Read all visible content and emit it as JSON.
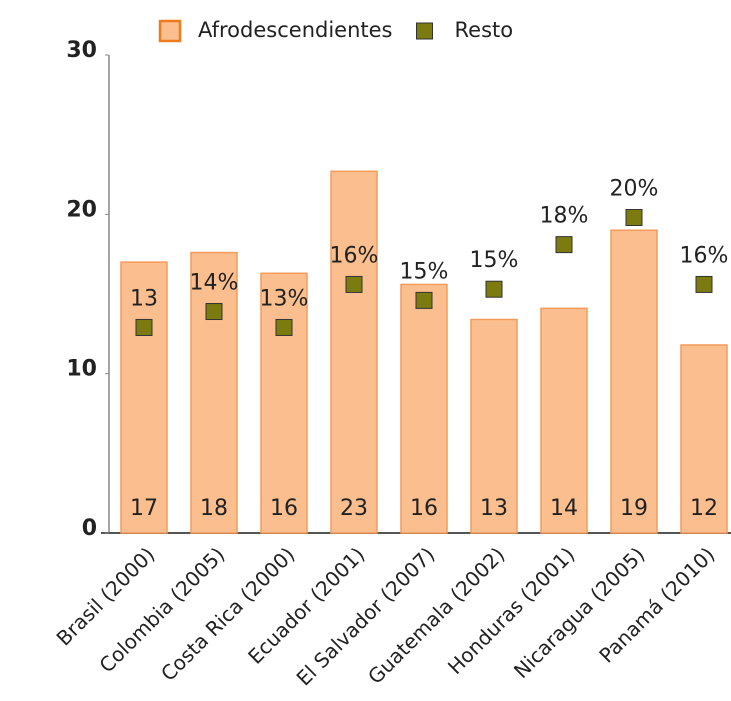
{
  "chart_data": {
    "type": "bar",
    "categories": [
      "Brasil (2000)",
      "Colombia (2005)",
      "Costa Rica (2000)",
      "Ecuador (2001)",
      "El Salvador (2007)",
      "Guatemala (2002)",
      "Honduras (2001)",
      "Nicaragua (2005)",
      "Panamá (2010)"
    ],
    "series": [
      {
        "name": "Afrodescendientes",
        "type": "bar",
        "color": "#fbbf8f",
        "values": [
          17.0,
          17.6,
          16.3,
          22.7,
          15.6,
          13.4,
          14.1,
          19.0,
          11.8
        ],
        "value_labels": [
          "17",
          "18",
          "16",
          "23",
          "16",
          "13",
          "14",
          "19",
          "12"
        ]
      },
      {
        "name": "Resto",
        "type": "scatter",
        "color": "#7b7b10",
        "values": [
          12.9,
          13.9,
          12.9,
          15.6,
          14.6,
          15.3,
          18.1,
          19.8,
          15.6
        ],
        "value_labels": [
          "13",
          "14%",
          "13%",
          "16%",
          "15%",
          "15%",
          "18%",
          "20%",
          "16%"
        ]
      }
    ],
    "ylim": [
      0,
      30
    ],
    "yticks": [
      0,
      10,
      20,
      30
    ],
    "legend": "top"
  }
}
